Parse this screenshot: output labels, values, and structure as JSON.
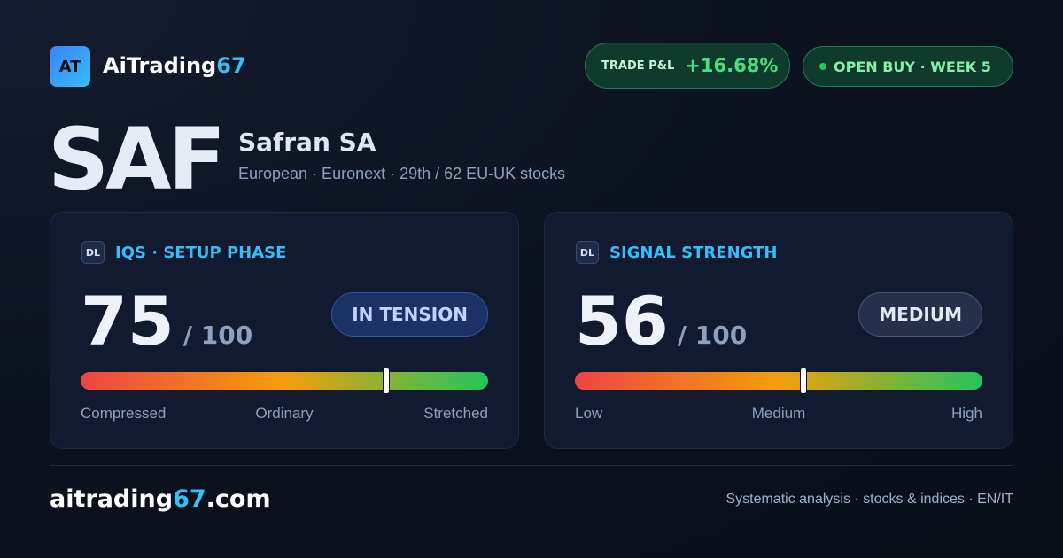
{
  "header": {
    "logo": "AT",
    "brand": [
      "AiTrading",
      "67"
    ],
    "pnl_label": "TRADE P&L",
    "pnl_value": "+16.68%",
    "status": "OPEN BUY · WEEK 5"
  },
  "stock": {
    "ticker": "SAF",
    "name": "Safran SA",
    "subtitle": "European · Euronext · 29th / 62 EU-UK stocks"
  },
  "cards": [
    {
      "icon": "DL",
      "title": "IQS · SETUP PHASE",
      "score": 75,
      "max": {
        "value": 100,
        "label": "/ 100"
      },
      "badge": "IN TENSION",
      "labels": [
        "Compressed",
        "Ordinary",
        "Stretched"
      ]
    },
    {
      "icon": "DL",
      "title": "SIGNAL STRENGTH",
      "score": 56,
      "max": {
        "value": 100,
        "label": "/ 100"
      },
      "badge": "MEDIUM",
      "labels": [
        "Low",
        "Medium",
        "High"
      ]
    }
  ],
  "footer": {
    "site": [
      "aitrading",
      "67",
      ".com"
    ],
    "tagline": "Systematic analysis · stocks & indices · EN/IT"
  }
}
